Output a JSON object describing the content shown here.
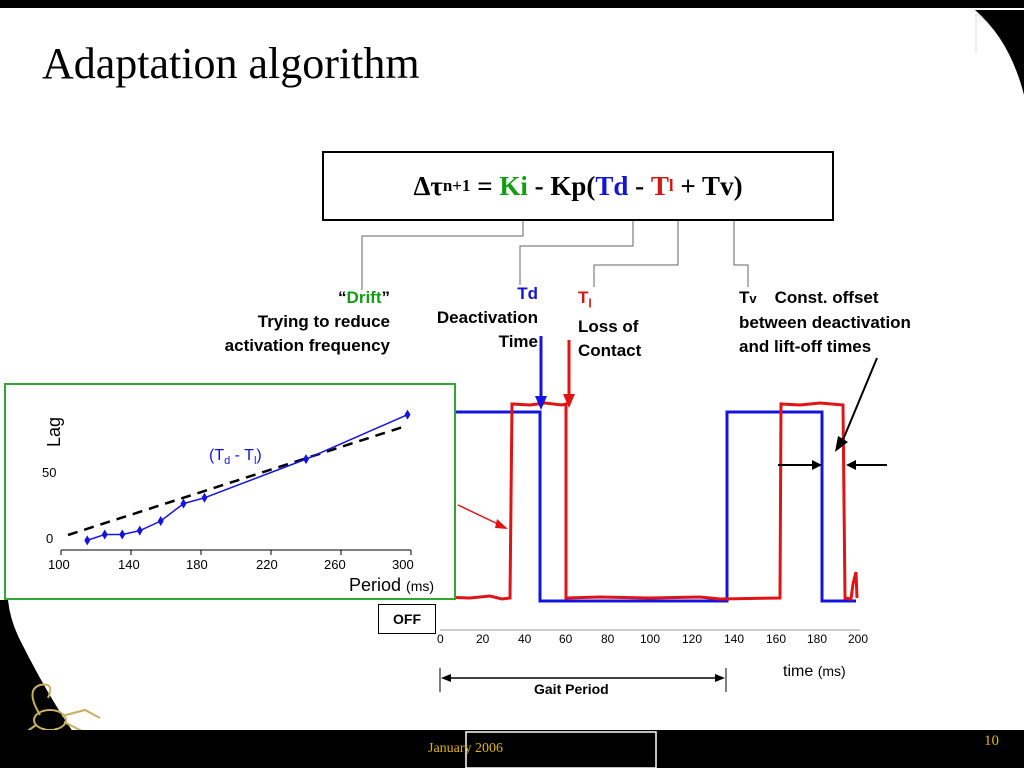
{
  "title": "Adaptation algorithm",
  "formula": {
    "delta_tau": "Δτ",
    "sub": "n+1",
    "eq": " = ",
    "ki": "Ki",
    "minus_kp": " - Kp(",
    "td": "Td",
    "minus": " - ",
    "tl": "T",
    "tl_sub": "l",
    "plus_tv": " + Tv)"
  },
  "annotations": {
    "drift_open": "“",
    "drift": "Drift",
    "drift_close": "”",
    "drift_line1": "Trying to reduce",
    "drift_line2": "activation frequency",
    "td_label": "Td",
    "td_line1": "Deactivation",
    "td_line2": "Time",
    "tl_label": "T",
    "tl_sub": "l",
    "tl_line1": "Loss of",
    "tl_line2": "Contact",
    "tv_label": "T",
    "tv_sub": "v",
    "tv_line0": "Const. offset",
    "tv_line1": "between deactivation",
    "tv_line2": "and lift-off times"
  },
  "main_plot": {
    "x_ticks": [
      "0",
      "20",
      "40",
      "60",
      "80",
      "100",
      "120",
      "140",
      "160",
      "180",
      "200"
    ],
    "xlabel": "time",
    "xlabel_unit": "(ms)",
    "gait_period": "Gait Period",
    "off_label": "OFF",
    "colors": {
      "activation": "#1414e0",
      "contact": "#e01414"
    }
  },
  "inset": {
    "ylabel": "Lag",
    "y_ticks": [
      "50",
      "0"
    ],
    "x_ticks": [
      "100",
      "140",
      "180",
      "220",
      "260",
      "300"
    ],
    "xlabel": "Period",
    "xlabel_unit": "(ms)",
    "series_label": "(T",
    "series_label_sub1": "d",
    "series_label_mid": " - T",
    "series_label_sub2": "l",
    "series_label_close": ")"
  },
  "chart_data": {
    "type": "line",
    "title": "",
    "xlabel": "Period (ms)",
    "ylabel": "Lag",
    "xlim": [
      100,
      300
    ],
    "ylim": [
      0,
      75
    ],
    "series": [
      {
        "name": "(Td - Tl)",
        "x": [
          115,
          125,
          135,
          145,
          157,
          170,
          182,
          240,
          298
        ],
        "y": [
          5,
          8,
          8,
          10,
          15,
          24,
          27,
          47,
          70
        ]
      }
    ]
  },
  "footer": {
    "date": "January 2006",
    "page": "10"
  }
}
